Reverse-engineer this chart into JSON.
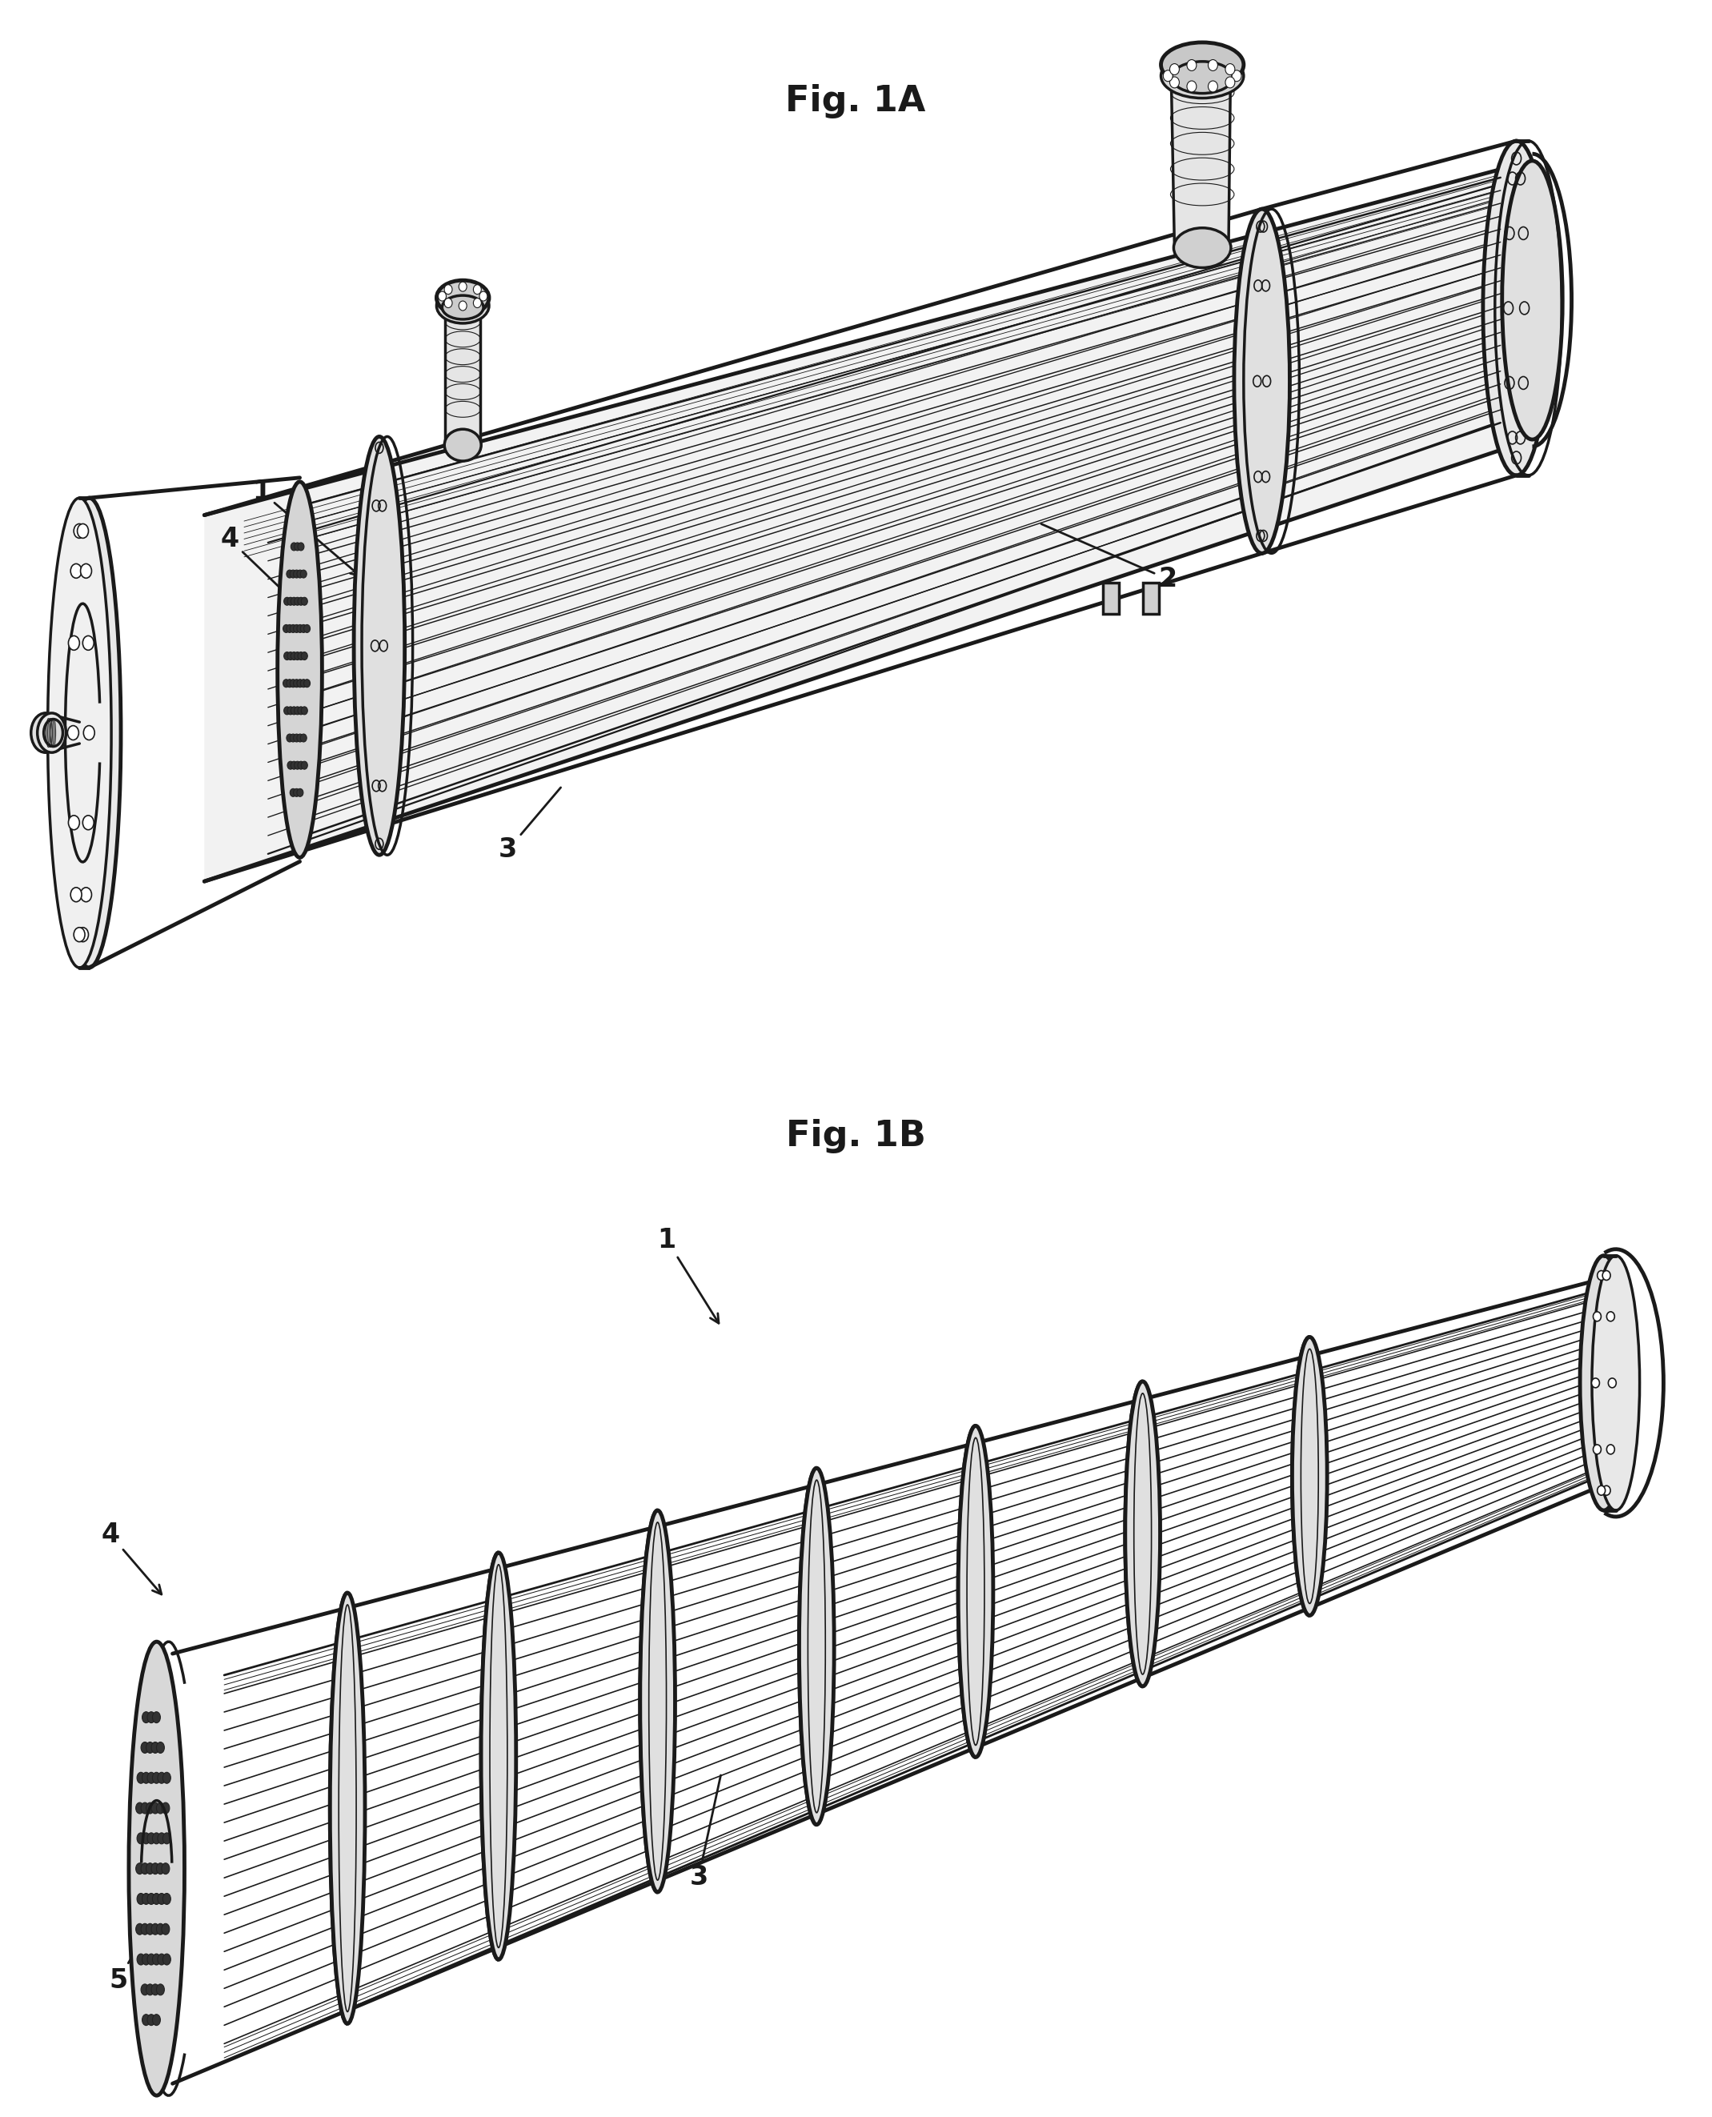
{
  "fig1a_title": "Fig. 1A",
  "fig1b_title": "Fig. 1B",
  "title_fontsize": 32,
  "label_fontsize": 24,
  "bg_color": "#ffffff",
  "line_color": "#1a1a1a"
}
